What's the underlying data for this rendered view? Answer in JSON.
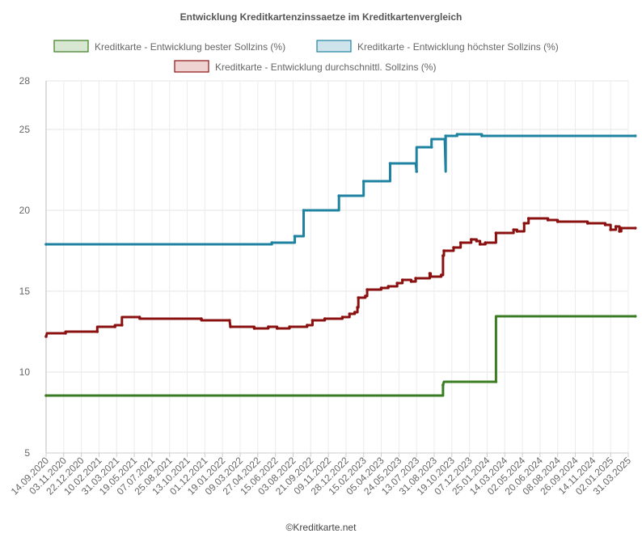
{
  "chart_data": {
    "type": "line",
    "title": "Entwicklung Kreditkartenzinssaetze im Kreditkartenvergleich",
    "footer": "©Kreditkarte.net",
    "xlabel": "",
    "ylabel": "",
    "ylim": [
      5,
      28
    ],
    "yticks": [
      5,
      10,
      15,
      20,
      25,
      28
    ],
    "grid": true,
    "legend_position": "top",
    "x_tick_labels": [
      "14.09.2020",
      "03.11.2020",
      "22.12.2020",
      "10.02.2021",
      "31.03.2021",
      "19.05.2021",
      "07.07.2021",
      "25.08.2021",
      "13.10.2021",
      "01.12.2021",
      "19.01.2022",
      "09.03.2022",
      "27.04.2022",
      "15.06.2022",
      "03.08.2022",
      "21.09.2022",
      "09.11.2022",
      "28.12.2022",
      "15.02.2023",
      "05.04.2023",
      "24.05.2023",
      "13.07.2023",
      "31.08.2023",
      "19.10.2023",
      "07.12.2023",
      "25.01.2024",
      "14.03.2024",
      "02.05.2024",
      "20.06.2024",
      "08.08.2024",
      "26.09.2024",
      "14.11.2024",
      "02.01.2025",
      "31.03.2025"
    ],
    "series": [
      {
        "name": "Kreditkarte - Entwicklung bester Sollzins  (%)",
        "color": "#3a7d22",
        "fill": "#d8e7d2",
        "points": [
          [
            0,
            8.55
          ],
          [
            22.5,
            8.55
          ],
          [
            22.5,
            9.2
          ],
          [
            22.55,
            9.4
          ],
          [
            25.5,
            9.4
          ],
          [
            25.5,
            13.45
          ],
          [
            33.4,
            13.45
          ]
        ]
      },
      {
        "name": "Kreditkarte - Entwicklung höchster Sollzins (%)",
        "color": "#1f83a0",
        "fill": "#cfe3ea",
        "points": [
          [
            0,
            17.9
          ],
          [
            12.8,
            17.9
          ],
          [
            12.8,
            18.0
          ],
          [
            14.1,
            18.0
          ],
          [
            14.1,
            18.4
          ],
          [
            14.6,
            18.4
          ],
          [
            14.6,
            20.0
          ],
          [
            16.6,
            20.0
          ],
          [
            16.6,
            20.9
          ],
          [
            18.0,
            20.9
          ],
          [
            18.0,
            21.8
          ],
          [
            19.5,
            21.8
          ],
          [
            19.5,
            22.9
          ],
          [
            20.95,
            22.9
          ],
          [
            21.0,
            22.4
          ],
          [
            21.0,
            23.9
          ],
          [
            21.85,
            23.9
          ],
          [
            21.85,
            24.4
          ],
          [
            22.6,
            24.4
          ],
          [
            22.65,
            22.4
          ],
          [
            22.65,
            24.6
          ],
          [
            23.3,
            24.6
          ],
          [
            23.3,
            24.7
          ],
          [
            24.7,
            24.7
          ],
          [
            24.7,
            24.6
          ],
          [
            33.4,
            24.6
          ]
        ]
      },
      {
        "name": "Kreditkarte - Entwicklung durchschnittl. Sollzins (%)",
        "color": "#8b1010",
        "fill": "#efd2d2",
        "points": [
          [
            0,
            12.2
          ],
          [
            0.05,
            12.4
          ],
          [
            1.1,
            12.4
          ],
          [
            1.1,
            12.5
          ],
          [
            2.9,
            12.5
          ],
          [
            2.9,
            12.8
          ],
          [
            3.9,
            12.8
          ],
          [
            3.9,
            12.9
          ],
          [
            4.3,
            12.9
          ],
          [
            4.3,
            13.4
          ],
          [
            5.3,
            13.4
          ],
          [
            5.3,
            13.3
          ],
          [
            8.8,
            13.3
          ],
          [
            8.8,
            13.2
          ],
          [
            10.4,
            13.2
          ],
          [
            10.4,
            13.2
          ],
          [
            10.45,
            12.8
          ],
          [
            11.8,
            12.8
          ],
          [
            11.8,
            12.7
          ],
          [
            12.6,
            12.7
          ],
          [
            12.6,
            12.8
          ],
          [
            13.1,
            12.8
          ],
          [
            13.1,
            12.7
          ],
          [
            13.8,
            12.7
          ],
          [
            13.8,
            12.8
          ],
          [
            14.8,
            12.8
          ],
          [
            14.8,
            12.9
          ],
          [
            15.1,
            12.9
          ],
          [
            15.1,
            13.2
          ],
          [
            15.8,
            13.2
          ],
          [
            15.8,
            13.3
          ],
          [
            16.8,
            13.3
          ],
          [
            16.8,
            13.4
          ],
          [
            17.2,
            13.4
          ],
          [
            17.2,
            13.6
          ],
          [
            17.5,
            13.6
          ],
          [
            17.5,
            13.7
          ],
          [
            17.65,
            13.7
          ],
          [
            17.65,
            14.0
          ],
          [
            17.7,
            14.0
          ],
          [
            17.7,
            14.6
          ],
          [
            18.1,
            14.6
          ],
          [
            18.1,
            14.7
          ],
          [
            18.2,
            14.7
          ],
          [
            18.2,
            15.1
          ],
          [
            19.0,
            15.1
          ],
          [
            19.0,
            15.2
          ],
          [
            19.4,
            15.2
          ],
          [
            19.4,
            15.3
          ],
          [
            19.9,
            15.3
          ],
          [
            19.9,
            15.5
          ],
          [
            20.2,
            15.5
          ],
          [
            20.2,
            15.7
          ],
          [
            20.7,
            15.7
          ],
          [
            20.7,
            15.6
          ],
          [
            20.95,
            15.6
          ],
          [
            20.95,
            15.8
          ],
          [
            21.75,
            15.8
          ],
          [
            21.75,
            16.1
          ],
          [
            21.8,
            16.1
          ],
          [
            21.8,
            15.9
          ],
          [
            22.4,
            15.9
          ],
          [
            22.4,
            16.0
          ],
          [
            22.5,
            16.0
          ],
          [
            22.5,
            17.2
          ],
          [
            22.55,
            17.2
          ],
          [
            22.55,
            17.5
          ],
          [
            23.1,
            17.5
          ],
          [
            23.1,
            17.7
          ],
          [
            23.5,
            17.7
          ],
          [
            23.5,
            18.0
          ],
          [
            24.1,
            18.0
          ],
          [
            24.1,
            18.2
          ],
          [
            24.4,
            18.2
          ],
          [
            24.4,
            18.1
          ],
          [
            24.6,
            18.1
          ],
          [
            24.6,
            17.9
          ],
          [
            24.9,
            17.9
          ],
          [
            24.9,
            18.0
          ],
          [
            25.5,
            18.0
          ],
          [
            25.5,
            18.6
          ],
          [
            26.5,
            18.6
          ],
          [
            26.5,
            18.8
          ],
          [
            26.7,
            18.8
          ],
          [
            26.7,
            18.7
          ],
          [
            27.1,
            18.7
          ],
          [
            27.1,
            19.2
          ],
          [
            27.35,
            19.2
          ],
          [
            27.35,
            19.5
          ],
          [
            28.45,
            19.5
          ],
          [
            28.45,
            19.4
          ],
          [
            29.0,
            19.4
          ],
          [
            29.0,
            19.3
          ],
          [
            30.7,
            19.3
          ],
          [
            30.7,
            19.2
          ],
          [
            31.7,
            19.2
          ],
          [
            31.7,
            19.1
          ],
          [
            32.0,
            19.1
          ],
          [
            32.0,
            18.8
          ],
          [
            32.3,
            18.8
          ],
          [
            32.3,
            19.0
          ],
          [
            32.5,
            19.0
          ],
          [
            32.5,
            18.7
          ],
          [
            32.6,
            18.7
          ],
          [
            32.6,
            18.9
          ],
          [
            33.4,
            18.9
          ]
        ]
      }
    ]
  }
}
